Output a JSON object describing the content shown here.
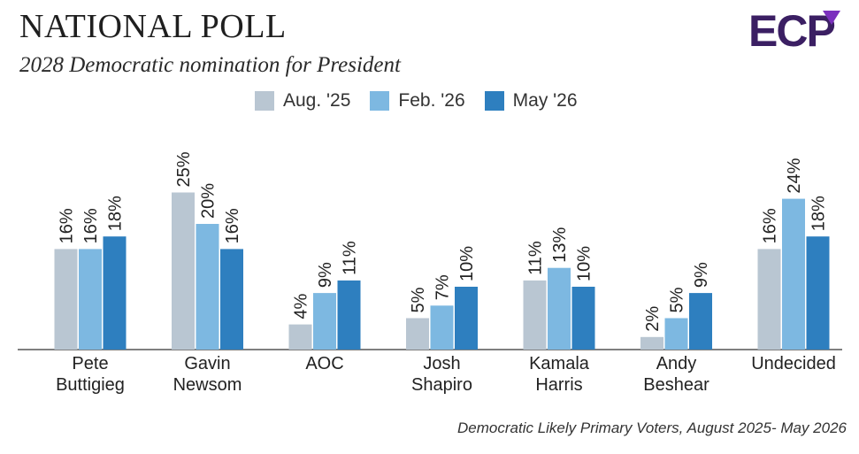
{
  "header": {
    "title": "NATIONAL POLL",
    "subtitle": "2028 Democratic nomination for President",
    "logo_text": "ECP"
  },
  "footer": {
    "source": "Democratic Likely Primary Voters, August 2025- May 2026"
  },
  "colors": {
    "brand": "#3b1f63",
    "brand_accent": "#7b2fbe"
  },
  "chart_data": {
    "type": "bar",
    "title": "2028 Democratic nomination for President",
    "categories": [
      [
        "Pete",
        "Buttigieg"
      ],
      [
        "Gavin",
        "Newsom"
      ],
      [
        "AOC"
      ],
      [
        "Josh",
        "Shapiro"
      ],
      [
        "Kamala",
        "Harris"
      ],
      [
        "Andy",
        "Beshear"
      ],
      [
        "Undecided"
      ]
    ],
    "series": [
      {
        "name": "Aug. '25",
        "color": "#b9c6d2",
        "values": [
          16,
          25,
          4,
          5,
          11,
          2,
          16
        ]
      },
      {
        "name": "Feb. '26",
        "color": "#7db8e1",
        "values": [
          16,
          20,
          9,
          7,
          13,
          5,
          24
        ]
      },
      {
        "name": "May '26",
        "color": "#2e7fbf",
        "values": [
          18,
          16,
          11,
          10,
          10,
          9,
          18
        ]
      }
    ],
    "value_suffix": "%",
    "ylim": [
      0,
      30
    ],
    "legend_position": "top",
    "grid": false
  }
}
